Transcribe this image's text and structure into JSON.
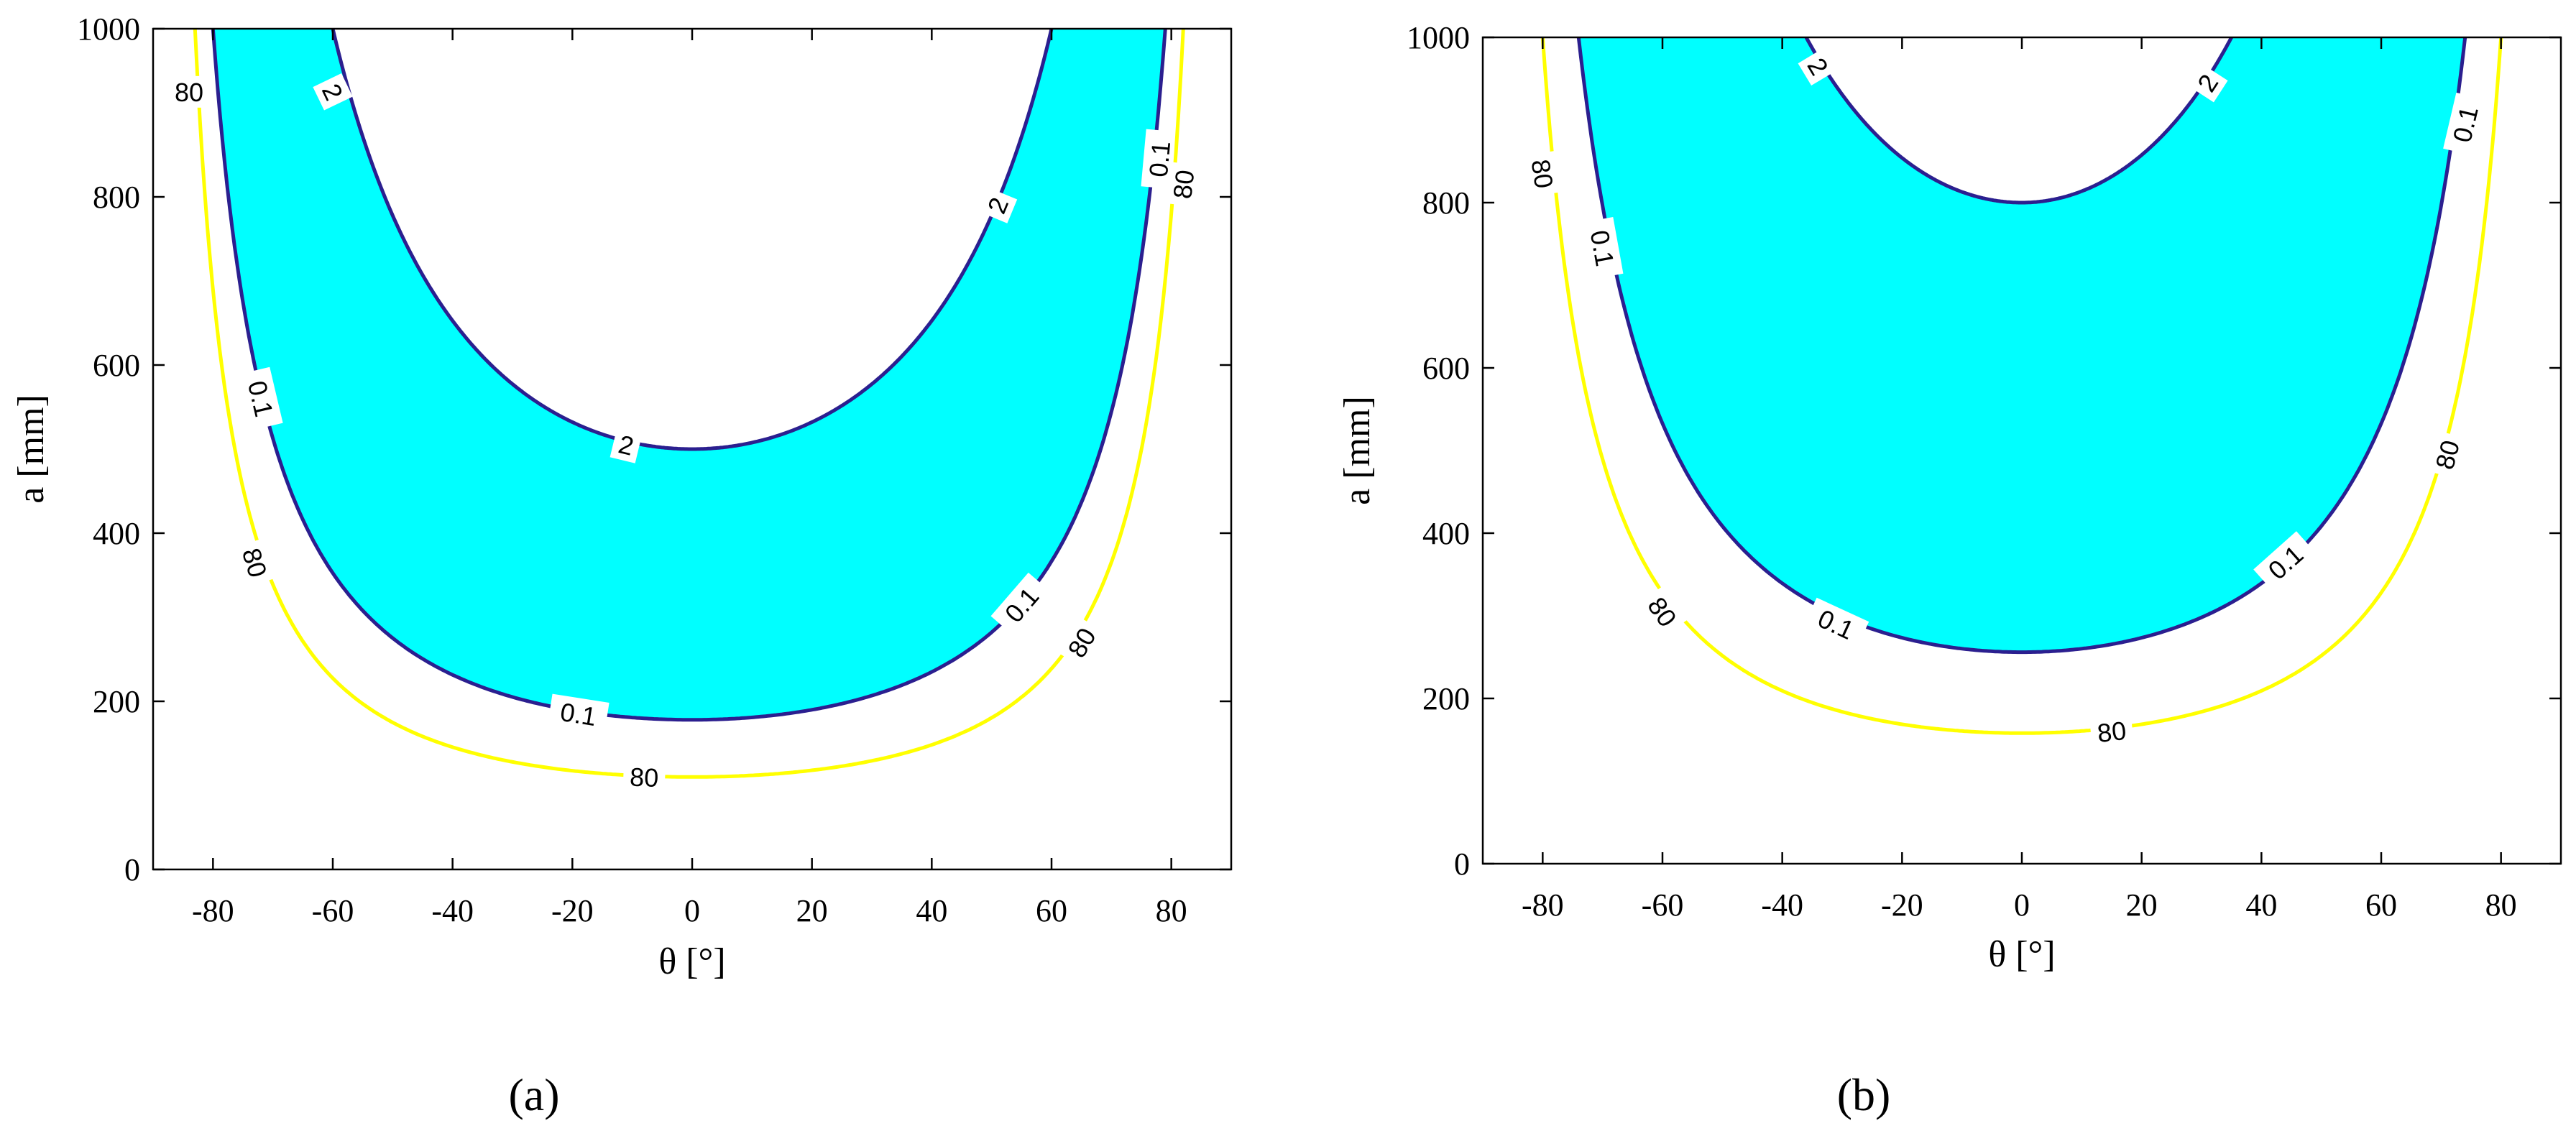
{
  "colors": {
    "fill": "#00ffff",
    "contour_2": "#2b1f8f",
    "contour_0_1": "#2b1f8f",
    "contour_80": "#ffff00",
    "axes": "#000000"
  },
  "chart_data": [
    {
      "type": "contour",
      "panel_label": "(a)",
      "xlabel": "θ [°]",
      "ylabel": "a [mm]",
      "xlim": [
        -90,
        90
      ],
      "ylim": [
        0,
        1000
      ],
      "xticks": [
        -80,
        -60,
        -40,
        -20,
        0,
        20,
        40,
        60,
        80
      ],
      "yticks": [
        0,
        200,
        400,
        600,
        800,
        1000
      ],
      "filled_region": "between contour 2 and contour 0.1",
      "contours": [
        {
          "level": "2",
          "min_a_at_theta_0": 500,
          "theta_at_a_1000": [
            -60,
            60
          ],
          "label_positions": [
            [
              -60,
              925
            ],
            [
              51,
              790
            ],
            [
              -11,
              505
            ]
          ]
        },
        {
          "level": "0.1",
          "min_a_at_theta_0": 178,
          "theta_at_a_1000": [
            -80,
            79
          ],
          "label_positions": [
            [
              -72,
              560
            ],
            [
              -19,
              185
            ],
            [
              55,
              315
            ],
            [
              78,
              845
            ]
          ]
        },
        {
          "level": "80",
          "min_a_at_theta_0": 110,
          "theta_at_a_1000": [
            -83,
            82
          ],
          "label_positions": [
            [
              -84,
              925
            ],
            [
              -73,
              365
            ],
            [
              -8,
              110
            ],
            [
              65,
              270
            ],
            [
              82,
              815
            ]
          ]
        }
      ]
    },
    {
      "type": "contour",
      "panel_label": "(b)",
      "xlabel": "θ [°]",
      "ylabel": "a [mm]",
      "xlim": [
        -90,
        90
      ],
      "ylim": [
        0,
        1000
      ],
      "xticks": [
        -80,
        -60,
        -40,
        -20,
        0,
        20,
        40,
        60,
        80
      ],
      "yticks": [
        0,
        200,
        400,
        600,
        800,
        1000
      ],
      "filled_region": "between contour 2 and contour 0.1",
      "contours": [
        {
          "level": "2",
          "min_a_at_theta_0": 800,
          "theta_at_a_1000": [
            -36,
            35
          ],
          "label_positions": [
            [
              -34,
              965
            ],
            [
              31,
              945
            ]
          ]
        },
        {
          "level": "0.1",
          "min_a_at_theta_0": 256,
          "theta_at_a_1000": [
            -74,
            74
          ],
          "label_positions": [
            [
              -70,
              745
            ],
            [
              -31,
              290
            ],
            [
              44,
              365
            ],
            [
              74,
              895
            ]
          ]
        },
        {
          "level": "80",
          "min_a_at_theta_0": 158,
          "theta_at_a_1000": [
            -80,
            80
          ],
          "label_positions": [
            [
              -80,
              835
            ],
            [
              -60,
              305
            ],
            [
              15,
              160
            ],
            [
              71,
              495
            ]
          ]
        }
      ]
    }
  ]
}
